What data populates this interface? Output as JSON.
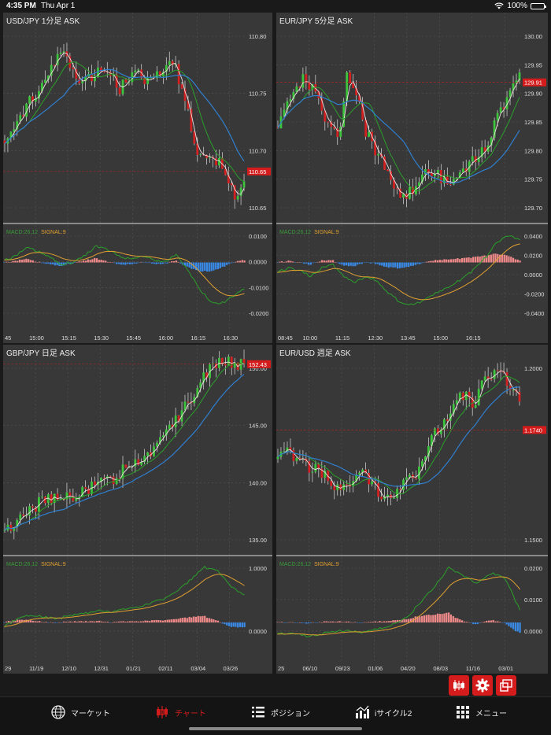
{
  "status": {
    "time": "4:35 PM",
    "date": "Thu Apr 1",
    "battery": "100%",
    "battery_level": 1.0
  },
  "panels": [
    {
      "title": "USD/JPY 1分足 ASK",
      "current_price": "110.65",
      "price_ticks": [
        "110.80",
        "110.75",
        "110.70",
        "110.65"
      ],
      "macd_ticks": [
        "0.0100",
        "0.0000",
        "-0.0100",
        "-0.0200"
      ],
      "x_ticks": [
        "45",
        "15:00",
        "15:15",
        "15:30",
        "15:45",
        "16:00",
        "16:15",
        "16:30"
      ],
      "macd_label": "MACD:26,12",
      "signal_label": "SIGNAL:9"
    },
    {
      "title": "EUR/JPY 5分足 ASK",
      "current_price": "129.91",
      "price_ticks": [
        "130.00",
        "129.95",
        "129.90",
        "129.85",
        "129.80",
        "129.75",
        "129.70"
      ],
      "macd_ticks": [
        "0.0400",
        "0.0200",
        "0.0000",
        "-0.0200",
        "-0.0400"
      ],
      "x_ticks": [
        "08:45",
        "10:00",
        "11:15",
        "12:30",
        "13:45",
        "15:00",
        "16:15"
      ],
      "macd_label": "MACD:26,12",
      "signal_label": "SIGNAL:9"
    },
    {
      "title": "GBP/JPY 日足 ASK",
      "current_price": "152.43",
      "price_ticks": [
        "150.00",
        "145.00",
        "140.00",
        "135.00"
      ],
      "macd_ticks": [
        "1.0000",
        "0.0000"
      ],
      "x_ticks": [
        "29",
        "11/19",
        "12/10",
        "12/31",
        "01/21",
        "02/11",
        "03/04",
        "03/26"
      ],
      "macd_label": "MACD:26,12",
      "signal_label": "SIGNAL:9"
    },
    {
      "title": "EUR/USD 週足 ASK",
      "current_price": "1.1740",
      "price_ticks": [
        "1.2000",
        "1.1500"
      ],
      "macd_ticks": [
        "0.0200",
        "0.0100",
        "0.0000"
      ],
      "x_ticks": [
        "25",
        "06/10",
        "09/23",
        "01/06",
        "04/20",
        "08/03",
        "11/16",
        "03/01"
      ],
      "macd_label": "MACD:26,12",
      "signal_label": "SIGNAL:9"
    }
  ],
  "toolbar": [
    "candle-chart-icon",
    "gear-icon",
    "layout-icon"
  ],
  "tabs": [
    {
      "label": "マーケット",
      "icon": "globe-icon"
    },
    {
      "label": "チャート",
      "icon": "candlestick-icon",
      "active": true
    },
    {
      "label": "ポジション",
      "icon": "list-icon"
    },
    {
      "label": "iサイクル2",
      "icon": "bar-chart-icon"
    },
    {
      "label": "メニュー",
      "icon": "grid-icon"
    }
  ]
}
